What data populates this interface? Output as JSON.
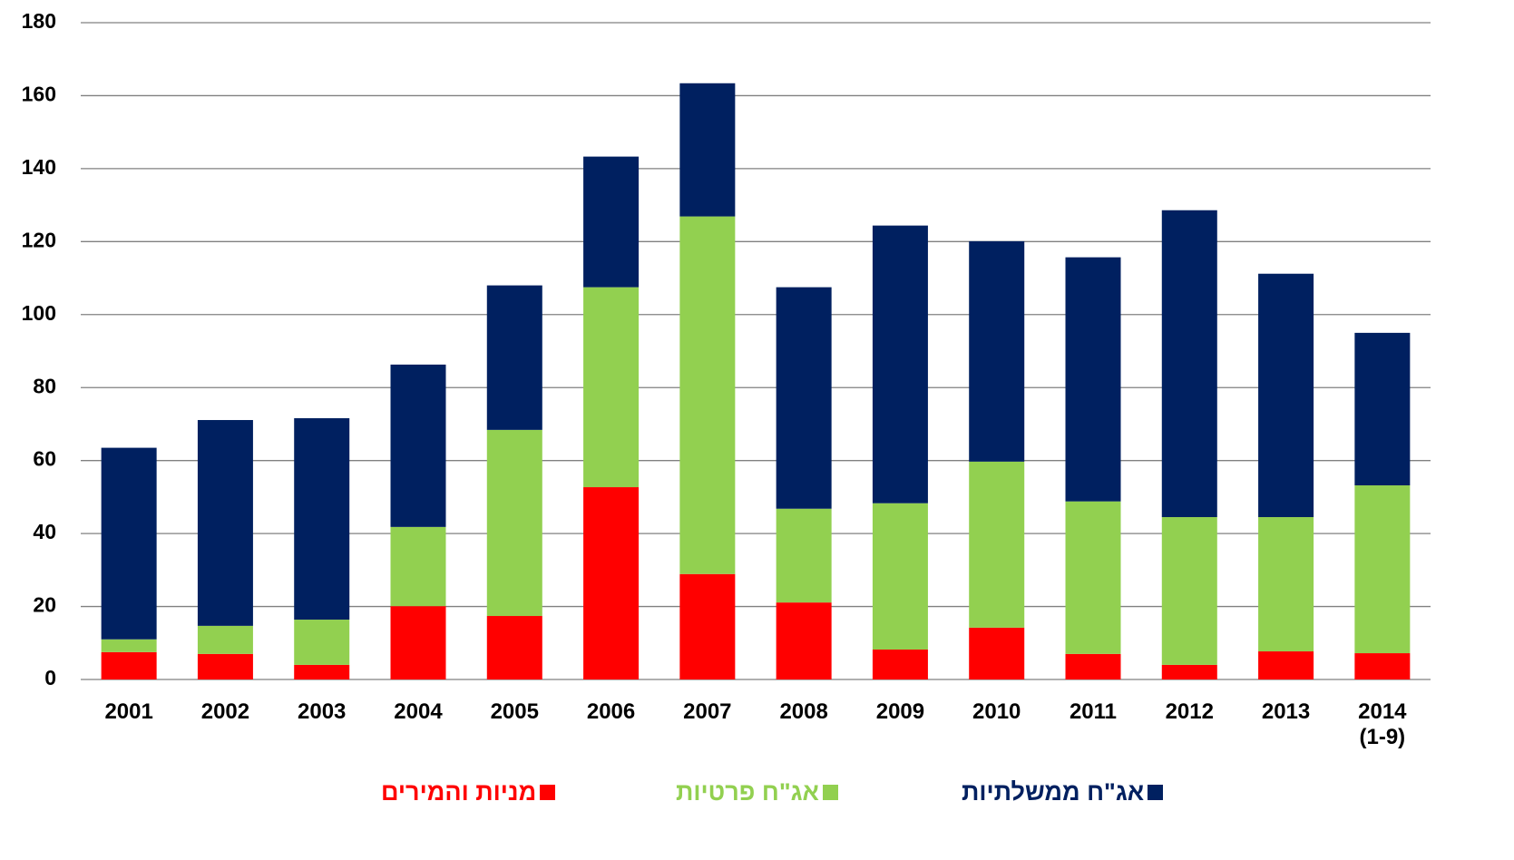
{
  "chart_data": {
    "type": "stacked_bar",
    "categories": [
      "2001",
      "2002",
      "2003",
      "2004",
      "2005",
      "2006",
      "2007",
      "2008",
      "2009",
      "2010",
      "2011",
      "2012",
      "2013",
      "2014\n(1-9)"
    ],
    "series": [
      {
        "name": "מניות והמירים",
        "color": "#ff0000",
        "values": [
          7.5,
          7,
          4,
          20.1,
          17.4,
          52.7,
          28.9,
          21.1,
          8.2,
          14.2,
          7,
          4,
          7.7,
          7.2
        ]
      },
      {
        "name": "אג\"ח פרטיות",
        "color": "#92d050",
        "values": [
          3.5,
          7.7,
          12.4,
          21.7,
          51,
          54.8,
          98,
          25.7,
          40.1,
          45.5,
          41.8,
          40.5,
          36.8,
          46
        ]
      },
      {
        "name": "אג\"ח ממשלתיות",
        "color": "#002060",
        "values": [
          52.5,
          56.4,
          55.2,
          44.5,
          39.6,
          35.8,
          36.5,
          60.7,
          76.1,
          60.4,
          66.9,
          84.1,
          66.7,
          41.8
        ]
      }
    ],
    "ylim": [
      0,
      180
    ],
    "yticks": [
      0,
      20,
      40,
      60,
      80,
      100,
      120,
      140,
      160,
      180
    ],
    "grid": true
  }
}
